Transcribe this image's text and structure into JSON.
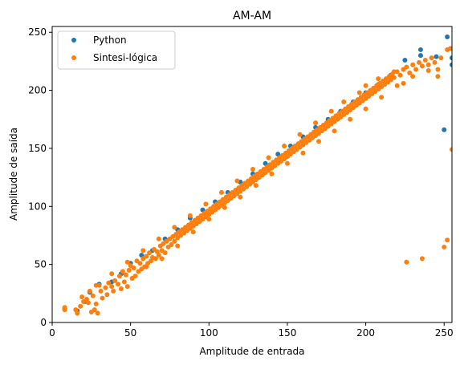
{
  "chart_data": {
    "type": "scatter",
    "title": "AM-AM",
    "xlabel": "Amplitude de entrada",
    "ylabel": "Amplitude de saída",
    "xlim": [
      0,
      255
    ],
    "ylim": [
      0,
      255
    ],
    "xticks": [
      0,
      50,
      100,
      150,
      200,
      250
    ],
    "yticks": [
      0,
      50,
      100,
      150,
      200,
      250
    ],
    "grid": false,
    "legend_position": "top-left",
    "series": [
      {
        "name": "Python",
        "color": "#1f77b4",
        "points": [
          [
            8,
            12
          ],
          [
            16,
            10
          ],
          [
            21,
            18
          ],
          [
            24,
            26
          ],
          [
            30,
            33
          ],
          [
            38,
            35
          ],
          [
            44,
            42
          ],
          [
            50,
            51
          ],
          [
            57,
            58
          ],
          [
            64,
            62
          ],
          [
            72,
            72
          ],
          [
            80,
            80
          ],
          [
            88,
            90
          ],
          [
            96,
            97
          ],
          [
            104,
            104
          ],
          [
            112,
            112
          ],
          [
            120,
            121
          ],
          [
            128,
            128
          ],
          [
            136,
            137
          ],
          [
            144,
            145
          ],
          [
            152,
            152
          ],
          [
            160,
            160
          ],
          [
            168,
            168
          ],
          [
            176,
            175
          ],
          [
            184,
            182
          ],
          [
            192,
            190
          ],
          [
            200,
            198
          ],
          [
            208,
            205
          ],
          [
            216,
            213
          ],
          [
            225,
            226
          ],
          [
            235,
            235
          ],
          [
            235,
            230
          ],
          [
            245,
            229
          ],
          [
            250,
            166
          ],
          [
            252,
            246
          ],
          [
            255,
            228
          ],
          [
            255,
            222
          ]
        ]
      },
      {
        "name": "Sintesi-lógica",
        "color": "#ff7f0e",
        "points": [
          [
            8,
            11
          ],
          [
            8,
            13
          ],
          [
            15,
            11
          ],
          [
            16,
            8
          ],
          [
            18,
            14
          ],
          [
            19,
            22
          ],
          [
            20,
            18
          ],
          [
            22,
            20
          ],
          [
            23,
            17
          ],
          [
            24,
            27
          ],
          [
            25,
            9
          ],
          [
            26,
            23
          ],
          [
            27,
            11
          ],
          [
            28,
            16
          ],
          [
            29,
            8
          ],
          [
            30,
            32
          ],
          [
            31,
            27
          ],
          [
            32,
            21
          ],
          [
            34,
            30
          ],
          [
            35,
            24
          ],
          [
            36,
            34
          ],
          [
            38,
            31
          ],
          [
            39,
            27
          ],
          [
            40,
            36
          ],
          [
            42,
            33
          ],
          [
            43,
            40
          ],
          [
            44,
            29
          ],
          [
            45,
            44
          ],
          [
            46,
            35
          ],
          [
            47,
            41
          ],
          [
            48,
            31
          ],
          [
            49,
            45
          ],
          [
            50,
            49
          ],
          [
            51,
            38
          ],
          [
            52,
            47
          ],
          [
            53,
            40
          ],
          [
            54,
            53
          ],
          [
            55,
            44
          ],
          [
            56,
            51
          ],
          [
            57,
            46
          ],
          [
            58,
            55
          ],
          [
            59,
            48
          ],
          [
            60,
            57
          ],
          [
            61,
            51
          ],
          [
            62,
            60
          ],
          [
            63,
            53
          ],
          [
            64,
            56
          ],
          [
            65,
            63
          ],
          [
            66,
            55
          ],
          [
            67,
            61
          ],
          [
            68,
            58
          ],
          [
            69,
            66
          ],
          [
            70,
            62
          ],
          [
            71,
            68
          ],
          [
            72,
            60
          ],
          [
            73,
            70
          ],
          [
            74,
            65
          ],
          [
            75,
            72
          ],
          [
            76,
            67
          ],
          [
            77,
            74
          ],
          [
            78,
            70
          ],
          [
            79,
            76
          ],
          [
            80,
            73
          ],
          [
            81,
            78
          ],
          [
            82,
            75
          ],
          [
            83,
            80
          ],
          [
            84,
            77
          ],
          [
            85,
            82
          ],
          [
            86,
            79
          ],
          [
            87,
            84
          ],
          [
            88,
            81
          ],
          [
            89,
            86
          ],
          [
            90,
            83
          ],
          [
            91,
            88
          ],
          [
            92,
            85
          ],
          [
            93,
            90
          ],
          [
            94,
            87
          ],
          [
            95,
            92
          ],
          [
            96,
            89
          ],
          [
            97,
            94
          ],
          [
            98,
            91
          ],
          [
            99,
            96
          ],
          [
            100,
            93
          ],
          [
            101,
            98
          ],
          [
            102,
            95
          ],
          [
            103,
            100
          ],
          [
            104,
            97
          ],
          [
            105,
            102
          ],
          [
            106,
            99
          ],
          [
            107,
            104
          ],
          [
            108,
            101
          ],
          [
            109,
            106
          ],
          [
            110,
            103
          ],
          [
            111,
            108
          ],
          [
            112,
            105
          ],
          [
            113,
            110
          ],
          [
            114,
            107
          ],
          [
            115,
            112
          ],
          [
            116,
            109
          ],
          [
            117,
            114
          ],
          [
            118,
            111
          ],
          [
            119,
            116
          ],
          [
            120,
            113
          ],
          [
            121,
            118
          ],
          [
            122,
            115
          ],
          [
            123,
            120
          ],
          [
            124,
            117
          ],
          [
            125,
            122
          ],
          [
            126,
            119
          ],
          [
            127,
            124
          ],
          [
            128,
            121
          ],
          [
            129,
            126
          ],
          [
            130,
            123
          ],
          [
            131,
            128
          ],
          [
            132,
            125
          ],
          [
            133,
            130
          ],
          [
            134,
            127
          ],
          [
            135,
            132
          ],
          [
            136,
            129
          ],
          [
            137,
            134
          ],
          [
            138,
            131
          ],
          [
            139,
            136
          ],
          [
            140,
            133
          ],
          [
            141,
            138
          ],
          [
            142,
            135
          ],
          [
            143,
            140
          ],
          [
            144,
            137
          ],
          [
            145,
            142
          ],
          [
            146,
            139
          ],
          [
            147,
            144
          ],
          [
            148,
            141
          ],
          [
            149,
            146
          ],
          [
            150,
            143
          ],
          [
            151,
            148
          ],
          [
            152,
            145
          ],
          [
            153,
            150
          ],
          [
            154,
            147
          ],
          [
            155,
            152
          ],
          [
            156,
            149
          ],
          [
            157,
            154
          ],
          [
            158,
            151
          ],
          [
            159,
            156
          ],
          [
            160,
            153
          ],
          [
            161,
            158
          ],
          [
            162,
            155
          ],
          [
            163,
            160
          ],
          [
            164,
            157
          ],
          [
            165,
            162
          ],
          [
            166,
            159
          ],
          [
            167,
            164
          ],
          [
            168,
            161
          ],
          [
            169,
            166
          ],
          [
            170,
            163
          ],
          [
            171,
            168
          ],
          [
            172,
            165
          ],
          [
            173,
            170
          ],
          [
            174,
            167
          ],
          [
            175,
            172
          ],
          [
            176,
            169
          ],
          [
            177,
            174
          ],
          [
            178,
            171
          ],
          [
            179,
            176
          ],
          [
            180,
            173
          ],
          [
            181,
            178
          ],
          [
            182,
            175
          ],
          [
            183,
            180
          ],
          [
            184,
            177
          ],
          [
            185,
            182
          ],
          [
            186,
            179
          ],
          [
            187,
            184
          ],
          [
            188,
            181
          ],
          [
            189,
            186
          ],
          [
            190,
            183
          ],
          [
            191,
            188
          ],
          [
            192,
            185
          ],
          [
            193,
            190
          ],
          [
            194,
            187
          ],
          [
            195,
            192
          ],
          [
            196,
            189
          ],
          [
            197,
            194
          ],
          [
            198,
            191
          ],
          [
            199,
            196
          ],
          [
            200,
            193
          ],
          [
            201,
            198
          ],
          [
            202,
            195
          ],
          [
            203,
            200
          ],
          [
            204,
            197
          ],
          [
            205,
            202
          ],
          [
            206,
            199
          ],
          [
            207,
            204
          ],
          [
            208,
            201
          ],
          [
            209,
            206
          ],
          [
            210,
            203
          ],
          [
            211,
            208
          ],
          [
            212,
            205
          ],
          [
            213,
            210
          ],
          [
            214,
            207
          ],
          [
            215,
            212
          ],
          [
            216,
            209
          ],
          [
            217,
            214
          ],
          [
            218,
            211
          ],
          [
            220,
            216
          ],
          [
            222,
            213
          ],
          [
            224,
            218
          ],
          [
            226,
            220
          ],
          [
            228,
            215
          ],
          [
            230,
            222
          ],
          [
            232,
            218
          ],
          [
            234,
            224
          ],
          [
            236,
            221
          ],
          [
            238,
            226
          ],
          [
            240,
            222
          ],
          [
            242,
            228
          ],
          [
            244,
            224
          ],
          [
            246,
            218
          ],
          [
            248,
            228
          ],
          [
            252,
            235
          ],
          [
            254,
            236
          ],
          [
            226,
            52
          ],
          [
            236,
            55
          ],
          [
            250,
            65
          ],
          [
            252,
            71
          ],
          [
            255,
            149
          ],
          [
            224,
            206
          ],
          [
            218,
            216
          ],
          [
            208,
            210
          ],
          [
            200,
            204
          ],
          [
            196,
            198
          ],
          [
            186,
            190
          ],
          [
            178,
            182
          ],
          [
            168,
            172
          ],
          [
            158,
            162
          ],
          [
            148,
            152
          ],
          [
            138,
            142
          ],
          [
            128,
            132
          ],
          [
            118,
            122
          ],
          [
            108,
            112
          ],
          [
            98,
            102
          ],
          [
            88,
            92
          ],
          [
            78,
            82
          ],
          [
            68,
            72
          ],
          [
            58,
            62
          ],
          [
            48,
            52
          ],
          [
            38,
            42
          ],
          [
            28,
            32
          ],
          [
            60,
            48
          ],
          [
            70,
            55
          ],
          [
            80,
            66
          ],
          [
            90,
            78
          ],
          [
            100,
            89
          ],
          [
            110,
            99
          ],
          [
            120,
            108
          ],
          [
            130,
            118
          ],
          [
            140,
            128
          ],
          [
            150,
            137
          ],
          [
            160,
            146
          ],
          [
            170,
            156
          ],
          [
            180,
            165
          ],
          [
            190,
            175
          ],
          [
            200,
            184
          ],
          [
            210,
            194
          ],
          [
            220,
            204
          ],
          [
            230,
            212
          ],
          [
            240,
            217
          ],
          [
            246,
            212
          ]
        ]
      }
    ]
  }
}
